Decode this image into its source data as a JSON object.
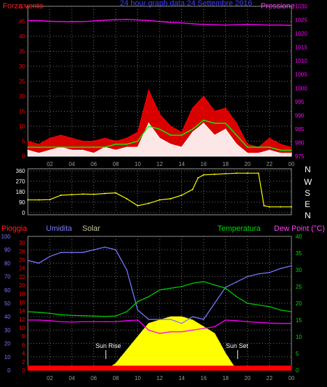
{
  "header": {
    "wind_label": "Forza vento",
    "title": "24 hour graph data  24 Settembre 2016",
    "pressure_label": "Pressione"
  },
  "bottom_header": {
    "rain_label": "Pioggia",
    "humidity_label": "Umidita",
    "solar_label": "Solar",
    "temperature_label": "Temperatura",
    "dewpoint_label": "Dew Point (°C)"
  },
  "compass": [
    "N",
    "W",
    "S",
    "E",
    "N"
  ],
  "annotations": {
    "sunrise": "Sun Rise",
    "sunset": "Sun Set"
  },
  "colors": {
    "wind_gust": "#ff0000",
    "wind_avg": "#ffffff",
    "wind_trend": "#00ff00",
    "pressure": "#ff00ff",
    "direction": "#ffff00",
    "humidity": "#7878ff",
    "temperature": "#00cc00",
    "dewpoint": "#ff00ff",
    "solar": "#ffff00",
    "rain": "#ff0000",
    "grid": "#707070",
    "axis_left": "#ff0000",
    "axis_right": "#ff00ff"
  },
  "chart_data": [
    {
      "type": "line",
      "title": "24 hour graph data  24 Settembre 2016",
      "x_ticks": [
        "02",
        "04",
        "06",
        "08",
        "10",
        "12",
        "14",
        "16",
        "18",
        "20",
        "22",
        "00"
      ],
      "x_hours": [
        0,
        1,
        2,
        3,
        4,
        5,
        6,
        7,
        8,
        9,
        10,
        11,
        12,
        13,
        14,
        15,
        16,
        17,
        18,
        19,
        20,
        21,
        22,
        23,
        24
      ],
      "y_left_ticks": [
        0,
        5,
        10,
        15,
        20,
        25,
        30,
        35,
        40,
        45,
        50
      ],
      "y_right_ticks": [
        975,
        980,
        985,
        990,
        995,
        1000,
        1005,
        1010,
        1015,
        1020,
        1025,
        1030
      ],
      "ylim_left": [
        0,
        50
      ],
      "ylim_right": [
        975,
        1030
      ],
      "series": [
        {
          "name": "Forza vento",
          "axis": "left",
          "values": [
            5,
            4,
            6,
            7,
            6,
            5,
            5,
            6,
            5,
            6,
            8,
            22,
            14,
            10,
            8,
            16,
            20,
            15,
            16,
            11,
            4,
            3,
            6,
            4,
            3
          ]
        },
        {
          "axis": "left",
          "values": [
            2,
            1,
            2,
            3,
            2,
            2,
            1,
            3,
            2,
            3,
            3,
            11,
            6,
            4,
            3,
            8,
            11,
            7,
            9,
            4,
            1,
            1,
            2,
            1,
            1
          ]
        },
        {
          "axis": "left",
          "values": [
            3,
            3,
            3,
            3,
            3,
            3,
            3,
            3,
            4,
            4,
            5,
            10,
            9,
            7,
            7,
            9,
            12,
            11,
            11,
            7,
            3,
            3,
            3,
            2,
            2
          ]
        },
        {
          "name": "Pressione",
          "axis": "right",
          "values": [
            1024.8,
            1024.7,
            1024.5,
            1024.4,
            1024.3,
            1024.4,
            1024.6,
            1024.9,
            1025.1,
            1025.2,
            1025.0,
            1024.8,
            1024.4,
            1024.1,
            1023.9,
            1023.6,
            1023.3,
            1023.2,
            1023.1,
            1023.2,
            1023.3,
            1023.2,
            1023.1,
            1023.1,
            1023.0
          ]
        }
      ]
    },
    {
      "type": "scatter",
      "y_ticks": [
        0,
        90,
        180,
        270,
        360
      ],
      "ylim": [
        0,
        360
      ],
      "x_ticks": [
        "02",
        "04",
        "06",
        "08",
        "10",
        "12",
        "14",
        "16",
        "18",
        "20",
        "22",
        "00"
      ],
      "series": [
        {
          "values": [
            [
              0,
              110
            ],
            [
              1,
              110
            ],
            [
              2,
              112
            ],
            [
              3,
              150
            ],
            [
              4,
              155
            ],
            [
              5,
              160
            ],
            [
              6,
              158
            ],
            [
              7,
              165
            ],
            [
              8,
              170
            ],
            [
              9,
              120
            ],
            [
              10,
              60
            ],
            [
              11,
              80
            ],
            [
              12,
              110
            ],
            [
              13,
              120
            ],
            [
              14,
              150
            ],
            [
              15,
              200
            ],
            [
              15.5,
              300
            ],
            [
              16,
              325
            ],
            [
              17,
              330
            ],
            [
              18,
              335
            ],
            [
              19,
              340
            ],
            [
              20,
              340
            ],
            [
              21,
              340
            ],
            [
              21.5,
              60
            ],
            [
              22,
              50
            ],
            [
              23,
              50
            ],
            [
              24,
              50
            ]
          ]
        }
      ]
    },
    {
      "type": "line",
      "x_ticks": [
        "02",
        "04",
        "06",
        "08",
        "10",
        "12",
        "14",
        "16",
        "18",
        "20",
        "22",
        "00"
      ],
      "y_humidity_ticks": [
        0,
        10,
        20,
        30,
        40,
        50,
        60,
        70,
        80,
        90,
        100
      ],
      "y_rain_ticks": [
        0,
        2,
        4,
        6,
        8,
        10,
        12,
        14,
        16,
        18,
        20,
        22,
        24,
        26,
        28,
        30
      ],
      "y_temp_ticks": [
        0,
        5,
        10,
        15,
        20,
        25,
        30,
        35,
        40
      ],
      "ylim_humidity": [
        0,
        100
      ],
      "ylim_temp": [
        0,
        40
      ],
      "series": [
        {
          "name": "Umidita",
          "axis": "humidity",
          "values": [
            82,
            80,
            85,
            88,
            88,
            88,
            90,
            92,
            90,
            75,
            45,
            38,
            38,
            38,
            35,
            40,
            38,
            50,
            62,
            66,
            70,
            72,
            73,
            76,
            78
          ]
        },
        {
          "name": "Temperatura",
          "axis": "temp",
          "values": [
            17.5,
            17.3,
            17.0,
            16.6,
            16.4,
            16.3,
            16.2,
            16.1,
            16.2,
            17.5,
            20.5,
            22.0,
            24.0,
            24.5,
            25.0,
            26.0,
            26.5,
            25.5,
            24.5,
            22.0,
            20.0,
            19.5,
            19.0,
            18.0,
            17.5
          ]
        },
        {
          "name": "Dew Point (°C)",
          "axis": "temp",
          "values": [
            15.0,
            15.0,
            14.8,
            14.5,
            14.4,
            14.5,
            14.5,
            14.5,
            14.5,
            14.8,
            15.0,
            12.0,
            11.0,
            11.5,
            11.5,
            12.0,
            12.5,
            13.0,
            15.0,
            14.8,
            14.5,
            14.3,
            14.1,
            14.0,
            14.0
          ]
        },
        {
          "name": "Solar",
          "axis": "temp",
          "values": [
            0,
            0,
            0,
            0,
            0,
            0,
            0,
            0,
            2,
            6,
            10,
            14,
            15,
            16,
            16,
            15,
            13,
            11,
            5,
            0,
            0,
            0,
            0,
            0,
            0
          ]
        },
        {
          "name": "Pioggia",
          "axis": "rain",
          "values": [
            1,
            1,
            1,
            1,
            1,
            1,
            1,
            1,
            1,
            1,
            1,
            1,
            1,
            1,
            1,
            1,
            1,
            1,
            1,
            1,
            1,
            1,
            1,
            1,
            1
          ]
        }
      ]
    }
  ]
}
